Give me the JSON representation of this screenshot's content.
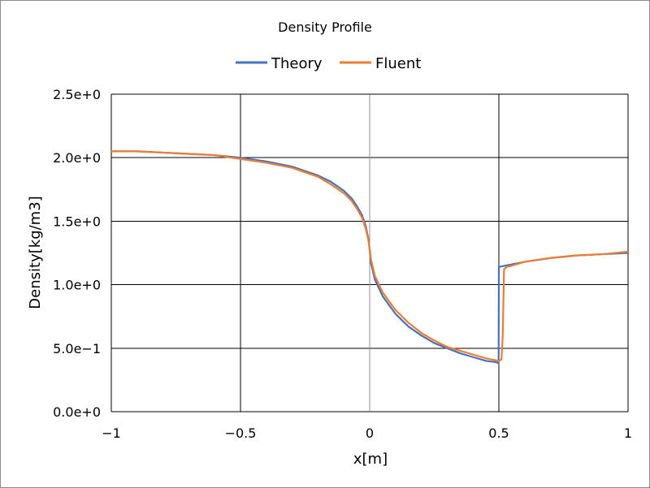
{
  "chart_data": {
    "type": "line",
    "title": "Density Profile",
    "xlabel": "x[m]",
    "ylabel": "Density[kg/m3]",
    "xlim": [
      -1,
      1
    ],
    "ylim": [
      0,
      2.5
    ],
    "x_ticks": [
      -1,
      -0.5,
      0,
      0.5,
      1
    ],
    "x_tick_labels": [
      "−1",
      "−0.5",
      "0",
      "0.5",
      "1"
    ],
    "y_ticks": [
      0,
      0.5,
      1.0,
      1.5,
      2.0,
      2.5
    ],
    "y_tick_labels": [
      "0.0e+0",
      "5.0e−1",
      "1.0e+0",
      "1.5e+0",
      "2.0e+0",
      "2.5e+0"
    ],
    "grid": true,
    "legend_position": "top",
    "series": [
      {
        "name": "Theory",
        "color": "#4472C4",
        "x": [
          -1,
          -0.9,
          -0.8,
          -0.7,
          -0.6,
          -0.5,
          -0.4,
          -0.3,
          -0.2,
          -0.15,
          -0.1,
          -0.07,
          -0.05,
          -0.03,
          -0.015,
          -0.005,
          0,
          0.005,
          0.02,
          0.05,
          0.1,
          0.15,
          0.2,
          0.25,
          0.3,
          0.35,
          0.4,
          0.45,
          0.49,
          0.499,
          0.5,
          0.501,
          0.55,
          0.6,
          0.7,
          0.8,
          0.9,
          1.0
        ],
        "y": [
          2.05,
          2.05,
          2.04,
          2.03,
          2.02,
          2.0,
          1.97,
          1.93,
          1.86,
          1.81,
          1.74,
          1.68,
          1.62,
          1.55,
          1.46,
          1.36,
          1.27,
          1.17,
          1.04,
          0.91,
          0.77,
          0.67,
          0.6,
          0.54,
          0.5,
          0.46,
          0.43,
          0.4,
          0.39,
          0.38,
          1.14,
          1.14,
          1.16,
          1.18,
          1.21,
          1.23,
          1.24,
          1.25
        ]
      },
      {
        "name": "Fluent",
        "color": "#ED7D31",
        "x": [
          -1,
          -0.9,
          -0.8,
          -0.7,
          -0.6,
          -0.5,
          -0.4,
          -0.3,
          -0.2,
          -0.15,
          -0.1,
          -0.07,
          -0.05,
          -0.03,
          -0.015,
          -0.005,
          0,
          0.005,
          0.02,
          0.05,
          0.1,
          0.15,
          0.2,
          0.25,
          0.3,
          0.35,
          0.4,
          0.45,
          0.5,
          0.51,
          0.515,
          0.52,
          0.53,
          0.55,
          0.6,
          0.7,
          0.8,
          0.9,
          1.0
        ],
        "y": [
          2.05,
          2.05,
          2.04,
          2.03,
          2.02,
          1.99,
          1.96,
          1.92,
          1.85,
          1.79,
          1.72,
          1.66,
          1.6,
          1.53,
          1.44,
          1.35,
          1.28,
          1.2,
          1.07,
          0.94,
          0.8,
          0.7,
          0.62,
          0.56,
          0.51,
          0.48,
          0.45,
          0.42,
          0.4,
          0.41,
          0.6,
          1.12,
          1.14,
          1.15,
          1.18,
          1.21,
          1.23,
          1.24,
          1.26
        ]
      }
    ]
  }
}
